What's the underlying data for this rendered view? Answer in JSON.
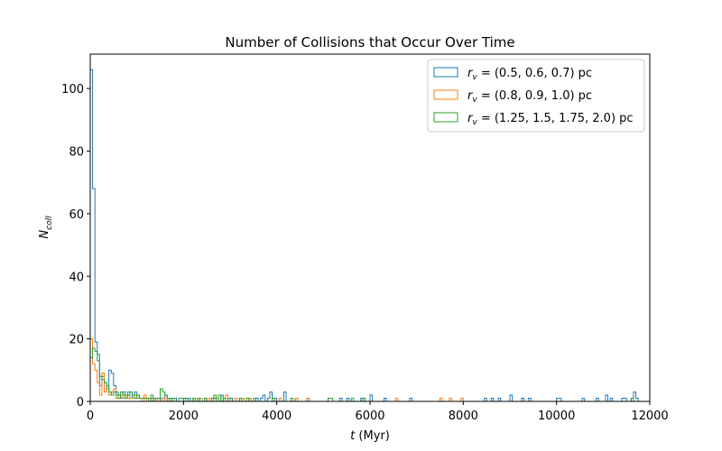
{
  "chart_data": {
    "type": "histogram",
    "title": "Number of Collisions that Occur Over Time",
    "xlabel_var": "t",
    "xlabel_unit": " (Myr)",
    "ylabel_var": "N",
    "ylabel_sub": "coll",
    "xlim": [
      0,
      12000
    ],
    "ylim": [
      0,
      111
    ],
    "xticks": [
      0,
      2000,
      4000,
      6000,
      8000,
      10000,
      12000
    ],
    "yticks": [
      0,
      20,
      40,
      60,
      80,
      100
    ],
    "bin_width": 50,
    "legend_position": "upper right",
    "grid": false,
    "series": [
      {
        "var": "r",
        "sub": "v",
        "values_text": " = (0.5, 0.6, 0.7) pc",
        "color": "#1f77b4",
        "bins": [
          [
            0,
            106
          ],
          [
            50,
            68
          ],
          [
            100,
            19
          ],
          [
            150,
            15
          ],
          [
            200,
            5
          ],
          [
            250,
            8
          ],
          [
            300,
            6
          ],
          [
            350,
            4
          ],
          [
            400,
            10
          ],
          [
            450,
            9
          ],
          [
            500,
            5
          ],
          [
            550,
            3
          ],
          [
            600,
            2
          ],
          [
            650,
            1
          ],
          [
            700,
            3
          ],
          [
            750,
            2
          ],
          [
            800,
            3
          ],
          [
            850,
            1
          ],
          [
            900,
            2
          ],
          [
            950,
            3
          ],
          [
            1000,
            2
          ],
          [
            1050,
            1
          ],
          [
            1100,
            1
          ],
          [
            1150,
            1
          ],
          [
            1200,
            1
          ],
          [
            1250,
            1
          ],
          [
            1350,
            1
          ],
          [
            1400,
            1
          ],
          [
            1500,
            1
          ],
          [
            1600,
            2
          ],
          [
            1700,
            1
          ],
          [
            1800,
            1
          ],
          [
            2000,
            1
          ],
          [
            2100,
            1
          ],
          [
            2300,
            1
          ],
          [
            2450,
            1
          ],
          [
            2650,
            1
          ],
          [
            2800,
            2
          ],
          [
            3000,
            1
          ],
          [
            3200,
            1
          ],
          [
            3400,
            1
          ],
          [
            3550,
            1
          ],
          [
            3650,
            1
          ],
          [
            3700,
            2
          ],
          [
            3800,
            1
          ],
          [
            3850,
            3
          ],
          [
            3950,
            1
          ],
          [
            4150,
            3
          ],
          [
            4400,
            1
          ],
          [
            4650,
            1
          ],
          [
            5350,
            1
          ],
          [
            5500,
            1
          ],
          [
            5800,
            1
          ],
          [
            6000,
            2
          ],
          [
            6300,
            1
          ],
          [
            6850,
            1
          ],
          [
            8450,
            1
          ],
          [
            8600,
            1
          ],
          [
            8750,
            1
          ],
          [
            9000,
            2
          ],
          [
            9250,
            1
          ],
          [
            9400,
            1
          ],
          [
            10000,
            1
          ],
          [
            10050,
            1
          ],
          [
            10550,
            1
          ],
          [
            10850,
            1
          ],
          [
            11050,
            2
          ],
          [
            11150,
            1
          ],
          [
            11400,
            1
          ],
          [
            11450,
            1
          ],
          [
            11600,
            1
          ],
          [
            11650,
            3
          ],
          [
            11700,
            1
          ]
        ]
      },
      {
        "var": "r",
        "sub": "v",
        "values_text": " = (0.8, 0.9, 1.0) pc",
        "color": "#ff7f0e",
        "bins": [
          [
            0,
            20
          ],
          [
            50,
            12
          ],
          [
            100,
            10
          ],
          [
            150,
            6
          ],
          [
            200,
            2
          ],
          [
            250,
            9
          ],
          [
            300,
            3
          ],
          [
            350,
            4
          ],
          [
            400,
            2
          ],
          [
            450,
            3
          ],
          [
            500,
            4
          ],
          [
            550,
            1
          ],
          [
            600,
            1
          ],
          [
            650,
            2
          ],
          [
            700,
            1
          ],
          [
            750,
            2
          ],
          [
            800,
            1
          ],
          [
            850,
            1
          ],
          [
            900,
            1
          ],
          [
            950,
            2
          ],
          [
            1000,
            1
          ],
          [
            1050,
            1
          ],
          [
            1150,
            2
          ],
          [
            1300,
            1
          ],
          [
            1400,
            1
          ],
          [
            1550,
            1
          ],
          [
            1650,
            1
          ],
          [
            1750,
            1
          ],
          [
            2050,
            1
          ],
          [
            2200,
            1
          ],
          [
            2350,
            1
          ],
          [
            2550,
            1
          ],
          [
            2700,
            1
          ],
          [
            2900,
            2
          ],
          [
            3100,
            1
          ],
          [
            3250,
            1
          ],
          [
            3400,
            1
          ],
          [
            4050,
            1
          ],
          [
            4400,
            1
          ],
          [
            4650,
            1
          ],
          [
            6550,
            1
          ],
          [
            7500,
            1
          ],
          [
            7700,
            1
          ],
          [
            7950,
            1
          ]
        ]
      },
      {
        "var": "r",
        "sub": "v",
        "values_text": " = (1.25, 1.5, 1.75, 2.0) pc",
        "color": "#2ca02c",
        "bins": [
          [
            0,
            14
          ],
          [
            50,
            17
          ],
          [
            100,
            16
          ],
          [
            150,
            13
          ],
          [
            200,
            8
          ],
          [
            250,
            7
          ],
          [
            300,
            6
          ],
          [
            350,
            5
          ],
          [
            400,
            3
          ],
          [
            450,
            2
          ],
          [
            500,
            3
          ],
          [
            550,
            2
          ],
          [
            600,
            1
          ],
          [
            650,
            3
          ],
          [
            700,
            2
          ],
          [
            750,
            1
          ],
          [
            800,
            2
          ],
          [
            850,
            3
          ],
          [
            900,
            2
          ],
          [
            950,
            1
          ],
          [
            1000,
            2
          ],
          [
            1050,
            1
          ],
          [
            1100,
            1
          ],
          [
            1150,
            1
          ],
          [
            1200,
            1
          ],
          [
            1300,
            2
          ],
          [
            1400,
            1
          ],
          [
            1450,
            1
          ],
          [
            1500,
            4
          ],
          [
            1550,
            3
          ],
          [
            1600,
            2
          ],
          [
            1650,
            1
          ],
          [
            1750,
            1
          ],
          [
            1900,
            1
          ],
          [
            1950,
            1
          ],
          [
            2050,
            1
          ],
          [
            2200,
            1
          ],
          [
            2300,
            1
          ],
          [
            2450,
            1
          ],
          [
            2600,
            1
          ],
          [
            2650,
            2
          ],
          [
            2750,
            2
          ],
          [
            2850,
            1
          ],
          [
            2950,
            1
          ],
          [
            3200,
            1
          ],
          [
            3350,
            1
          ],
          [
            3500,
            1
          ],
          [
            3900,
            1
          ],
          [
            4300,
            1
          ],
          [
            5100,
            1
          ],
          [
            5150,
            1
          ],
          [
            5600,
            1
          ],
          [
            5850,
            1
          ],
          [
            11600,
            1
          ]
        ]
      }
    ]
  }
}
